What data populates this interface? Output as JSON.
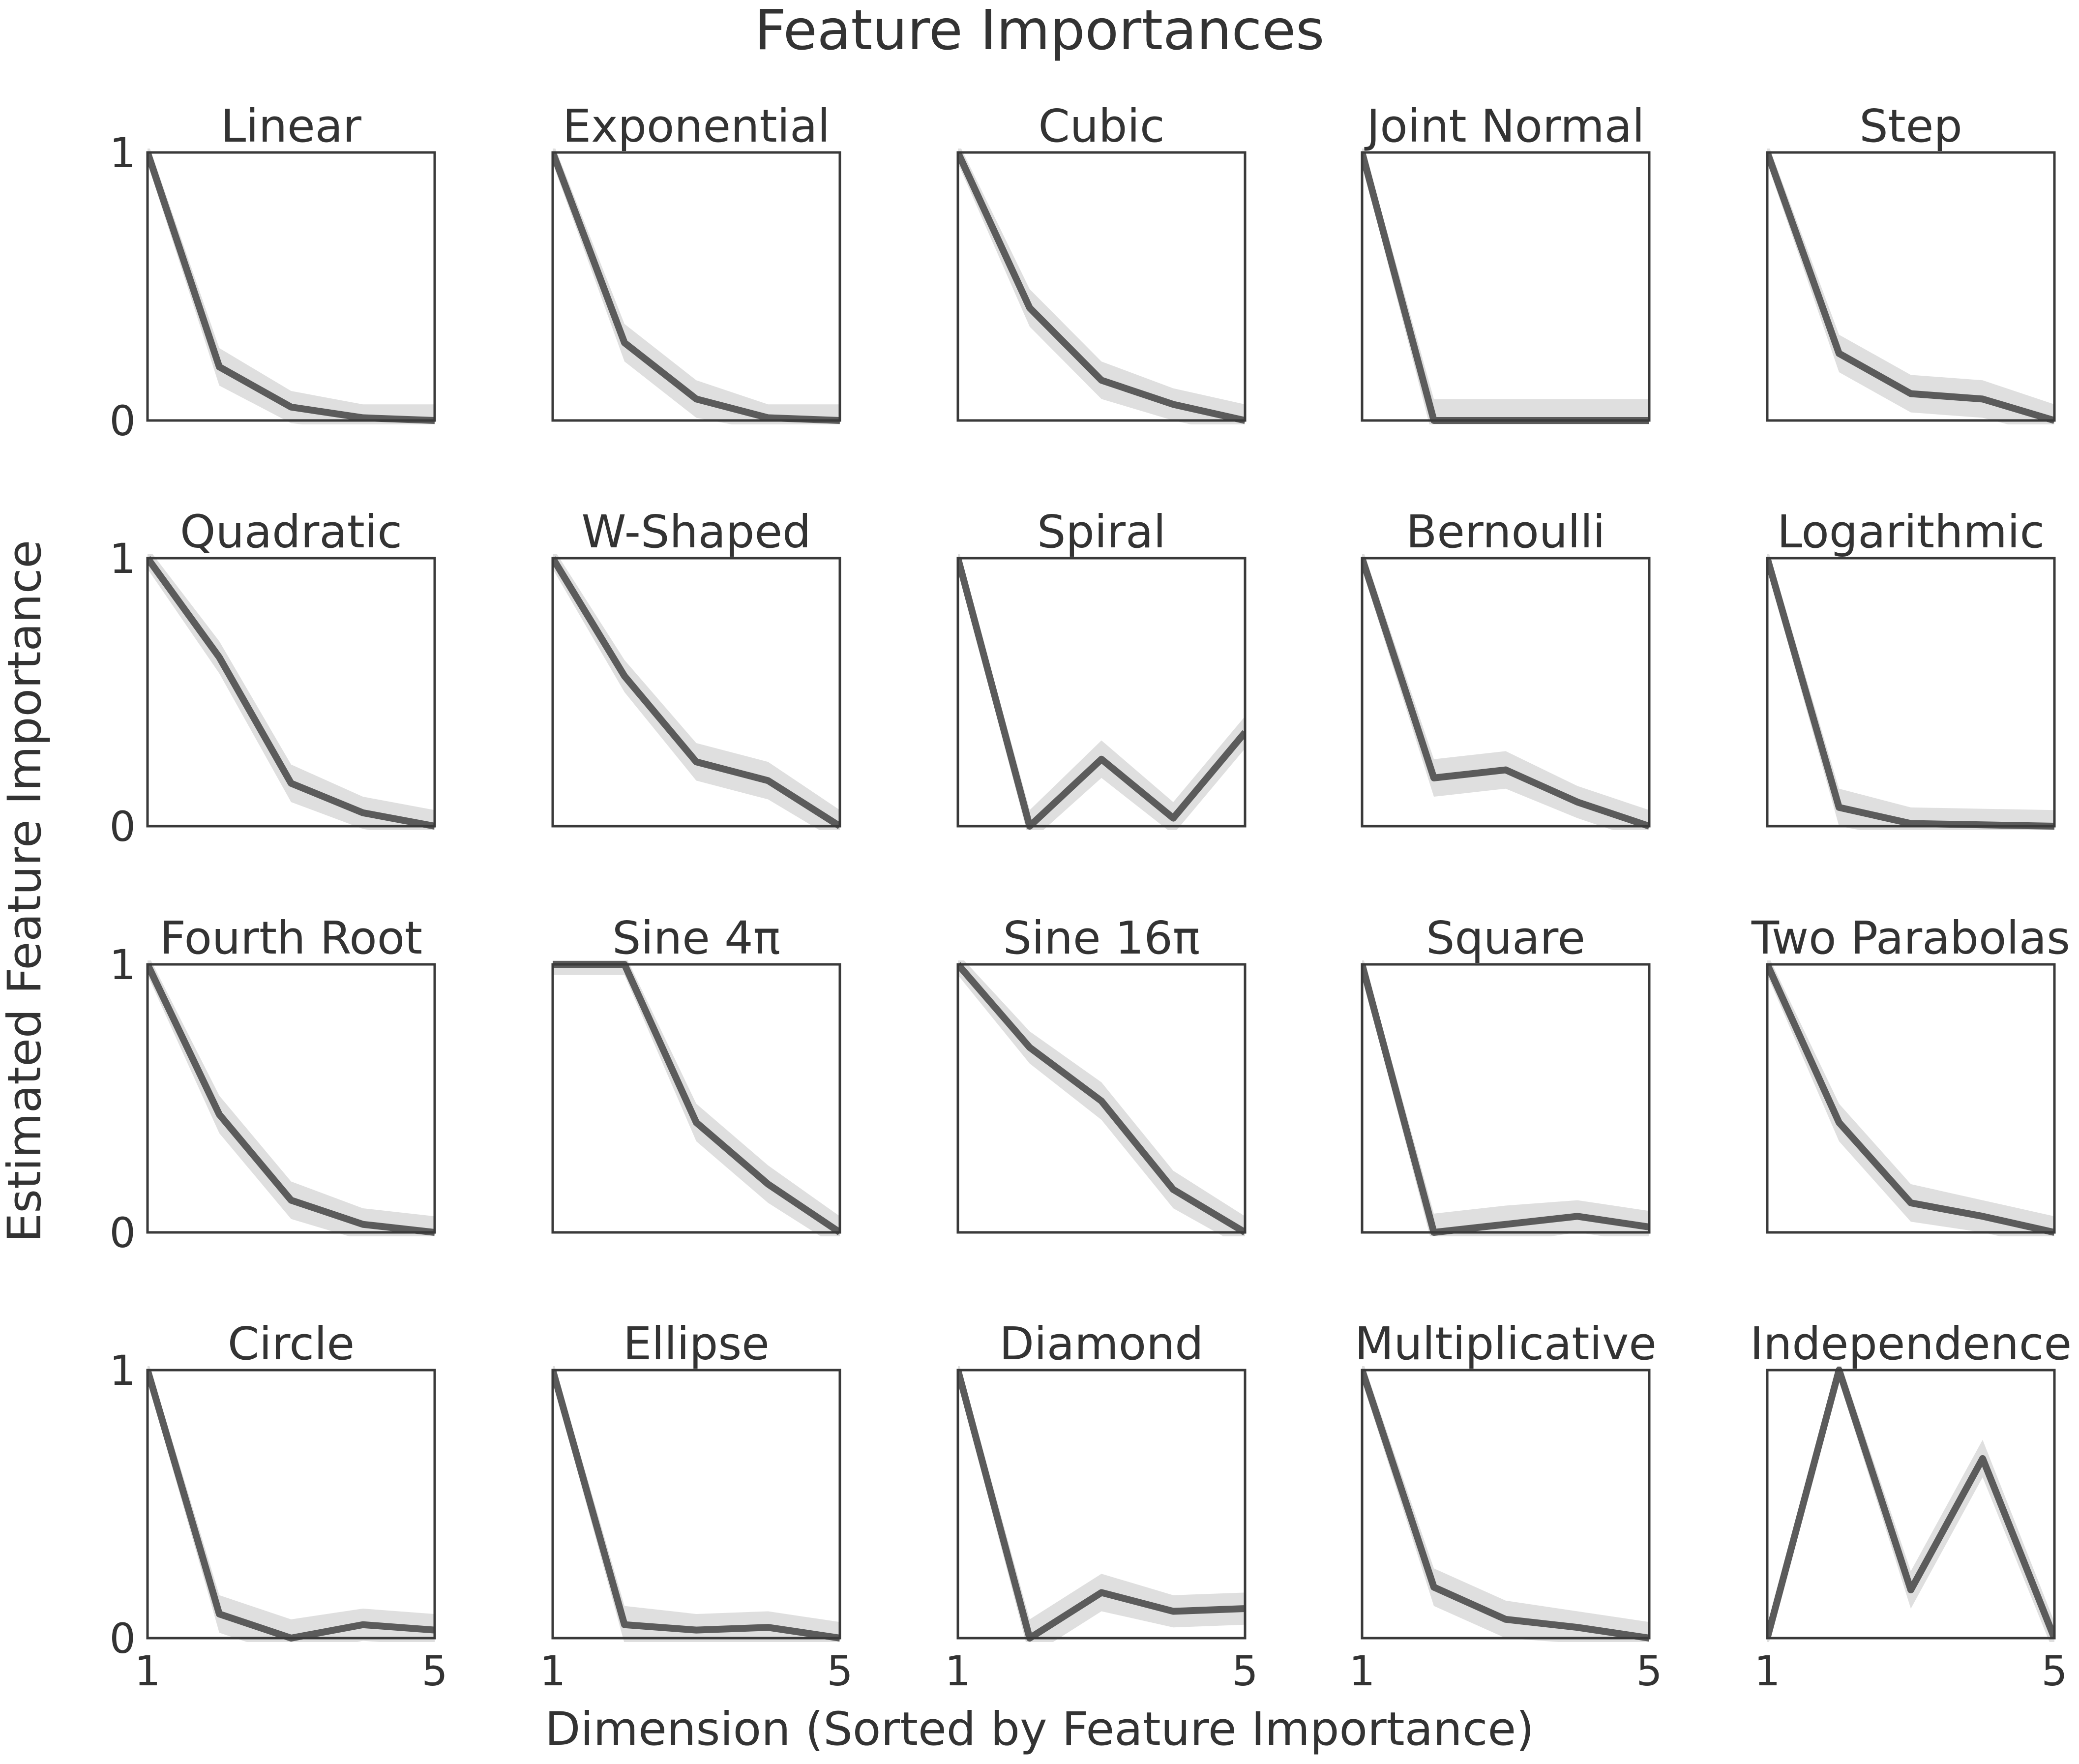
{
  "chart_data": {
    "type": "line",
    "title": "Feature Importances",
    "xlabel": "Dimension (Sorted by Feature Importance)",
    "ylabel": "Estimated Feature Importance",
    "x": [
      1,
      2,
      3,
      4,
      5
    ],
    "xlim": [
      1,
      5
    ],
    "ylim": [
      0,
      1
    ],
    "xticks": [
      "1",
      "5"
    ],
    "yticks": [
      "0",
      "1"
    ],
    "grid": false,
    "line_color": "#5b5b5b",
    "band_color": "#d9d9d9",
    "panels": [
      {
        "title": "Linear",
        "values": [
          1,
          0.2,
          0.05,
          0.01,
          0
        ],
        "band": [
          0.04,
          0.07,
          0.06,
          0.05,
          0.06
        ]
      },
      {
        "title": "Exponential",
        "values": [
          1,
          0.29,
          0.08,
          0.01,
          0
        ],
        "band": [
          0.04,
          0.07,
          0.07,
          0.05,
          0.06
        ]
      },
      {
        "title": "Cubic",
        "values": [
          1,
          0.42,
          0.15,
          0.06,
          0
        ],
        "band": [
          0.04,
          0.07,
          0.07,
          0.06,
          0.06
        ]
      },
      {
        "title": "Joint Normal",
        "values": [
          1,
          0,
          0,
          0,
          0
        ],
        "band": [
          0.04,
          0.08,
          0.08,
          0.08,
          0.08
        ]
      },
      {
        "title": "Step",
        "values": [
          1,
          0.25,
          0.1,
          0.08,
          0
        ],
        "band": [
          0.04,
          0.07,
          0.07,
          0.07,
          0.06
        ]
      },
      {
        "title": "Quadratic",
        "values": [
          1,
          0.63,
          0.16,
          0.05,
          0
        ],
        "band": [
          0.04,
          0.06,
          0.07,
          0.06,
          0.06
        ]
      },
      {
        "title": "W-Shaped",
        "values": [
          1,
          0.56,
          0.24,
          0.17,
          0
        ],
        "band": [
          0.04,
          0.06,
          0.07,
          0.07,
          0.06
        ]
      },
      {
        "title": "Spiral",
        "values": [
          1,
          0,
          0.25,
          0.03,
          0.35
        ],
        "band": [
          0.04,
          0.06,
          0.07,
          0.06,
          0.06
        ]
      },
      {
        "title": "Bernoulli",
        "values": [
          1,
          0.18,
          0.21,
          0.09,
          0
        ],
        "band": [
          0.04,
          0.07,
          0.07,
          0.06,
          0.06
        ]
      },
      {
        "title": "Logarithmic",
        "values": [
          1,
          0.07,
          0.01,
          0.005,
          0
        ],
        "band": [
          0.04,
          0.07,
          0.06,
          0.06,
          0.06
        ]
      },
      {
        "title": "Fourth Root",
        "values": [
          1,
          0.44,
          0.12,
          0.03,
          0
        ],
        "band": [
          0.04,
          0.07,
          0.07,
          0.06,
          0.06
        ]
      },
      {
        "title": "Sine 4π",
        "values": [
          1,
          1,
          0.41,
          0.18,
          0
        ],
        "band": [
          0.04,
          0.04,
          0.07,
          0.07,
          0.06
        ]
      },
      {
        "title": "Sine 16π",
        "values": [
          1,
          0.69,
          0.49,
          0.16,
          0
        ],
        "band": [
          0.04,
          0.06,
          0.07,
          0.07,
          0.06
        ]
      },
      {
        "title": "Square",
        "values": [
          1,
          0,
          0.03,
          0.06,
          0.02
        ],
        "band": [
          0.04,
          0.07,
          0.07,
          0.06,
          0.06
        ]
      },
      {
        "title": "Two Parabolas",
        "values": [
          1,
          0.41,
          0.11,
          0.06,
          0
        ],
        "band": [
          0.04,
          0.07,
          0.07,
          0.06,
          0.06
        ]
      },
      {
        "title": "Circle",
        "values": [
          1,
          0.09,
          0,
          0.05,
          0.03
        ],
        "band": [
          0.04,
          0.07,
          0.07,
          0.06,
          0.06
        ]
      },
      {
        "title": "Ellipse",
        "values": [
          1,
          0.05,
          0.03,
          0.04,
          0
        ],
        "band": [
          0.04,
          0.07,
          0.06,
          0.06,
          0.06
        ]
      },
      {
        "title": "Diamond",
        "values": [
          1,
          0,
          0.17,
          0.1,
          0.11
        ],
        "band": [
          0.04,
          0.07,
          0.07,
          0.06,
          0.06
        ]
      },
      {
        "title": "Multiplicative",
        "values": [
          1,
          0.19,
          0.07,
          0.04,
          0
        ],
        "band": [
          0.04,
          0.07,
          0.07,
          0.06,
          0.06
        ]
      },
      {
        "title": "Independence",
        "values": [
          0,
          1,
          0.18,
          0.67,
          0
        ],
        "band": [
          0.04,
          0.04,
          0.07,
          0.07,
          0.06
        ]
      }
    ]
  }
}
